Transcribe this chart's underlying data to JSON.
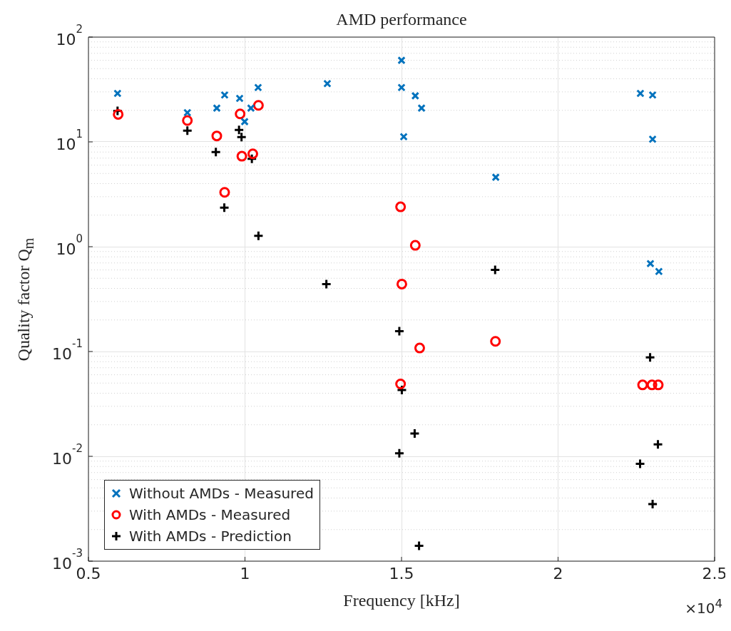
{
  "chart_data": {
    "type": "scatter",
    "title": "AMD performance",
    "xlabel": "Frequency [kHz]",
    "ylabel": "Quality factor Q$_{m}$",
    "log": "y",
    "grid": true,
    "legend": "bottom left",
    "xlim": [
      0.5,
      2.5
    ],
    "xticks": [
      0.5,
      1,
      1.5,
      2,
      2.5
    ],
    "ylim": [
      0.001,
      100
    ],
    "yticks": [
      {
        "value": 0.001,
        "label": "10$^{-3}$"
      },
      {
        "value": 0.01,
        "label": "10$^{-2}$"
      },
      {
        "value": 0.1,
        "label": "10$^{-1}$"
      },
      {
        "value": 1,
        "label": "10$^{0}$"
      },
      {
        "value": 10,
        "label": "10$^{1}$"
      },
      {
        "value": 100,
        "label": "10$^{2}$"
      }
    ],
    "annotations": [
      "×10$^{4}$"
    ],
    "series": [
      {
        "name": "Without AMDs - Measured",
        "color": "#0072bd",
        "marker": "x",
        "x": [
          0.593,
          0.816,
          0.91,
          0.935,
          0.983,
          0.999,
          1.019,
          1.042,
          1.263,
          1.5,
          1.5,
          1.544,
          1.564,
          1.507,
          1.801,
          2.263,
          2.302,
          2.302,
          2.295,
          2.322
        ],
        "values": [
          29,
          19,
          21,
          28,
          26,
          15.6,
          21,
          33,
          36,
          60,
          33,
          27.5,
          21,
          11.2,
          4.6,
          29,
          28,
          10.6,
          0.69,
          0.58
        ]
      },
      {
        "name": "With AMDs - Measured",
        "color": "#ff0000",
        "marker": "circle",
        "x": [
          0.595,
          0.816,
          0.91,
          0.9845,
          1.043,
          0.99,
          1.025,
          0.935,
          1.497,
          1.544,
          1.501,
          1.558,
          1.497,
          1.8,
          2.27,
          2.3,
          2.32
        ],
        "values": [
          18.3,
          16,
          11.4,
          18.5,
          22.3,
          7.3,
          7.7,
          3.3,
          2.4,
          1.03,
          0.44,
          0.108,
          0.049,
          0.125,
          0.048,
          0.048,
          0.048
        ]
      },
      {
        "name": "With AMDs - Prediction",
        "color": "#000000",
        "marker": "cross",
        "x": [
          0.593,
          0.816,
          0.907,
          0.981,
          0.989,
          1.022,
          0.934,
          1.043,
          1.26,
          1.493,
          1.501,
          1.542,
          1.493,
          1.556,
          1.799,
          2.294,
          2.319,
          2.262,
          2.302
        ],
        "values": [
          19.8,
          12.8,
          8.0,
          13,
          11.1,
          6.9,
          2.36,
          1.27,
          0.44,
          0.156,
          0.043,
          0.0165,
          0.0107,
          0.0014,
          0.6,
          0.088,
          0.013,
          0.0085,
          0.0035
        ]
      }
    ]
  }
}
